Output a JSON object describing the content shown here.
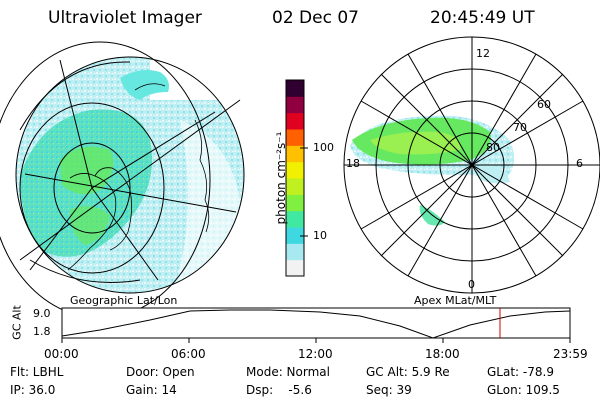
{
  "header": {
    "instrument": "Ultraviolet Imager",
    "date": "02 Dec 07",
    "time": "20:45:49 UT"
  },
  "colorbar": {
    "label": "photon cm⁻²s⁻¹",
    "tick_100": "100",
    "tick_10": "10",
    "colors": [
      "#f2f2f2",
      "#a8e8f0",
      "#40d8e0",
      "#40e8a0",
      "#80f040",
      "#c0f020",
      "#f0f000",
      "#ffc000",
      "#ff6000",
      "#e00020",
      "#900040",
      "#300030"
    ]
  },
  "left_map": {
    "label": "Geographic Lat/Lon"
  },
  "right_map": {
    "label": "Apex  MLat/MLT",
    "lat_labels": [
      "60",
      "70",
      "80"
    ],
    "mlt_labels": {
      "top": "12",
      "left": "18",
      "right": "6",
      "bottom": "0"
    }
  },
  "altitude_plot": {
    "ylabel": "GC Alt",
    "y_ticks": [
      "9.0",
      "1.8"
    ],
    "x_ticks": [
      "00:00",
      "06:00",
      "12:00",
      "18:00",
      "23:59"
    ],
    "marker_color": "#d00000"
  },
  "footer": {
    "rows": [
      [
        "Flt: LBHL",
        "Door: Open",
        "Mode: Normal",
        "GC Alt: 5.9 Re",
        "GLat: -78.9"
      ],
      [
        "IP: 36.0",
        "Gain: 14",
        "Dsp:    -5.6",
        "Seq: 39",
        "GLon: 109.5"
      ]
    ]
  }
}
